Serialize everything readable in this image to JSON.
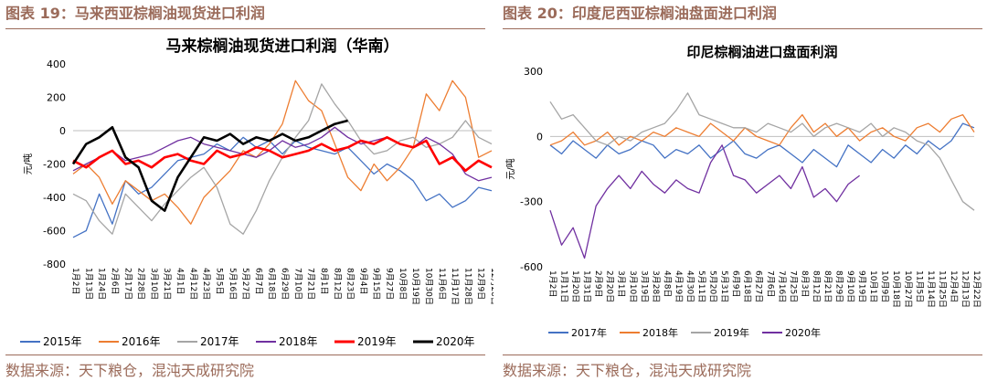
{
  "panels": {
    "left_header": "图表 19：马来西亚棕榈油现货进口利润",
    "right_header": "图表 20：印度尼西亚棕榈油盘面进口利润",
    "left_source": "数据来源：天下粮仓，混沌天成研究院",
    "right_source": "数据来源：天下粮仓，混沌天成研究院"
  },
  "colors": {
    "header": "#9b6b5a",
    "s2015": "#4472c4",
    "s2016": "#ed7d31",
    "s2017": "#a5a5a5",
    "s2018": "#7030a0",
    "s2019": "#ff0000",
    "s2020": "#000000"
  },
  "chart_data": [
    {
      "type": "line",
      "title": "马来棕榈油现货进口利润（华南）",
      "ylabel": "元/吨",
      "ylim": [
        -800,
        400
      ],
      "yticks": [
        "400",
        "200",
        "0",
        "-200",
        "-400",
        "-600",
        "-800"
      ],
      "categories": [
        "1月2日",
        "1月13日",
        "1月24日",
        "2月6日",
        "2月17日",
        "2月28日",
        "3月10日",
        "3月21日",
        "4月1日",
        "4月12日",
        "4月23日",
        "5月5日",
        "5月16日",
        "5月27日",
        "6月7日",
        "6月18日",
        "6月29日",
        "7月10日",
        "7月21日",
        "8月1日",
        "8月12日",
        "8月23日",
        "9月4日",
        "9月15日",
        "9月27日",
        "10月8日",
        "10月19日",
        "10月30日",
        "11月6日",
        "11月17日",
        "11月28日",
        "12月9日",
        "12月20日"
      ],
      "series": [
        {
          "name": "2015年",
          "values": [
            -640,
            -600,
            -380,
            -560,
            -300,
            -380,
            -340,
            -260,
            -180,
            -160,
            -140,
            -80,
            -120,
            -40,
            -100,
            -60,
            -140,
            -60,
            -100,
            -120,
            -140,
            -100,
            -180,
            -260,
            -200,
            -240,
            -300,
            -420,
            -380,
            -460,
            -420,
            -340,
            -360
          ]
        },
        {
          "name": "2016年",
          "values": [
            -260,
            -200,
            -280,
            -440,
            -300,
            -360,
            -420,
            -380,
            -460,
            -560,
            -400,
            -320,
            -240,
            -120,
            -160,
            -80,
            40,
            300,
            180,
            120,
            -80,
            -280,
            -360,
            -200,
            -300,
            -220,
            -100,
            220,
            120,
            300,
            200,
            -160,
            -120
          ]
        },
        {
          "name": "2017年",
          "values": [
            -380,
            -420,
            -540,
            -620,
            -380,
            -460,
            -540,
            -440,
            -360,
            -280,
            -220,
            -340,
            -560,
            -620,
            -480,
            -300,
            -160,
            -40,
            60,
            280,
            160,
            60,
            -60,
            -140,
            -120,
            -60,
            -40,
            -100,
            -80,
            -40,
            60,
            -40,
            -80
          ]
        },
        {
          "name": "2018年",
          "values": [
            -240,
            -200,
            -160,
            -120,
            -180,
            -160,
            -140,
            -100,
            -60,
            -40,
            -80,
            -100,
            -120,
            -140,
            -160,
            -120,
            -60,
            -100,
            -80,
            -40,
            20,
            -40,
            -80,
            -60,
            -40,
            -80,
            -100,
            -40,
            -80,
            -140,
            -260,
            -300,
            -280
          ]
        },
        {
          "name": "2019年",
          "values": [
            -180,
            -220,
            -160,
            -120,
            -200,
            -180,
            -220,
            -160,
            -140,
            -180,
            -200,
            -120,
            -160,
            -140,
            -100,
            -120,
            -160,
            -140,
            -120,
            -80,
            -120,
            -100,
            -60,
            -80,
            -40,
            -80,
            -100,
            -60,
            -200,
            -160,
            -240,
            -180,
            -220
          ]
        },
        {
          "name": "2020年",
          "values": [
            -200,
            -80,
            -40,
            20,
            -160,
            -220,
            -420,
            -480,
            -280,
            -160,
            -40,
            -60,
            -20,
            -80,
            -40,
            -60,
            -20,
            -60,
            -40,
            0,
            40,
            60,
            null,
            null,
            null,
            null,
            null,
            null,
            null,
            null,
            null,
            null,
            null
          ]
        }
      ]
    },
    {
      "type": "line",
      "title": "印尼棕榈油进口盘面利润",
      "ylabel": "元/吨",
      "ylim": [
        -600,
        300
      ],
      "yticks": [
        "300",
        "0",
        "-300",
        "-600"
      ],
      "categories": [
        "1月2日",
        "1月11日",
        "1月20日",
        "1月31日",
        "2月9日",
        "2月20日",
        "3月1日",
        "3月10日",
        "3月19日",
        "3月28日",
        "4月8日",
        "4月19日",
        "4月30日",
        "5月11日",
        "5月20日",
        "5月31日",
        "6月9日",
        "6月18日",
        "6月27日",
        "7月6日",
        "7月16日",
        "7月25日",
        "8月3日",
        "8月12日",
        "8月21日",
        "8月29日",
        "9月10日",
        "9月19日",
        "10月1日",
        "10月9日",
        "10月18日",
        "10月27日",
        "11月5日",
        "11月14日",
        "11月25日",
        "12月4日",
        "12月13日",
        "12月22日"
      ],
      "series": [
        {
          "name": "2017年",
          "values": [
            -40,
            -80,
            -20,
            -60,
            -100,
            -40,
            -80,
            -60,
            -20,
            -40,
            -100,
            -60,
            -80,
            -40,
            -100,
            -60,
            -20,
            -80,
            -100,
            -60,
            -40,
            -80,
            -120,
            -60,
            -100,
            -140,
            -40,
            -80,
            -120,
            -60,
            -100,
            -40,
            -80,
            -20,
            -60,
            -20,
            60,
            40
          ]
        },
        {
          "name": "2018年",
          "values": [
            -40,
            -20,
            20,
            -40,
            -20,
            20,
            -40,
            0,
            -20,
            20,
            0,
            40,
            20,
            0,
            60,
            20,
            -20,
            40,
            0,
            -20,
            -40,
            40,
            100,
            20,
            60,
            0,
            40,
            -20,
            20,
            40,
            0,
            -20,
            40,
            60,
            20,
            80,
            100,
            20
          ]
        },
        {
          "name": "2019年",
          "values": [
            160,
            80,
            100,
            40,
            -20,
            -40,
            0,
            -20,
            20,
            40,
            60,
            120,
            200,
            100,
            80,
            60,
            40,
            40,
            20,
            60,
            40,
            20,
            60,
            0,
            40,
            60,
            40,
            20,
            60,
            0,
            40,
            20,
            -20,
            -40,
            -100,
            -200,
            -300,
            -340
          ]
        },
        {
          "name": "2020年",
          "values": [
            -340,
            -500,
            -420,
            -560,
            -320,
            -240,
            -180,
            -240,
            -160,
            -220,
            -260,
            -200,
            -240,
            -260,
            -120,
            -40,
            -180,
            -200,
            -260,
            -220,
            -180,
            -240,
            -140,
            -280,
            -240,
            -300,
            -220,
            -180,
            null,
            null,
            null,
            null,
            null,
            null,
            null,
            null,
            null,
            null
          ]
        }
      ]
    }
  ]
}
